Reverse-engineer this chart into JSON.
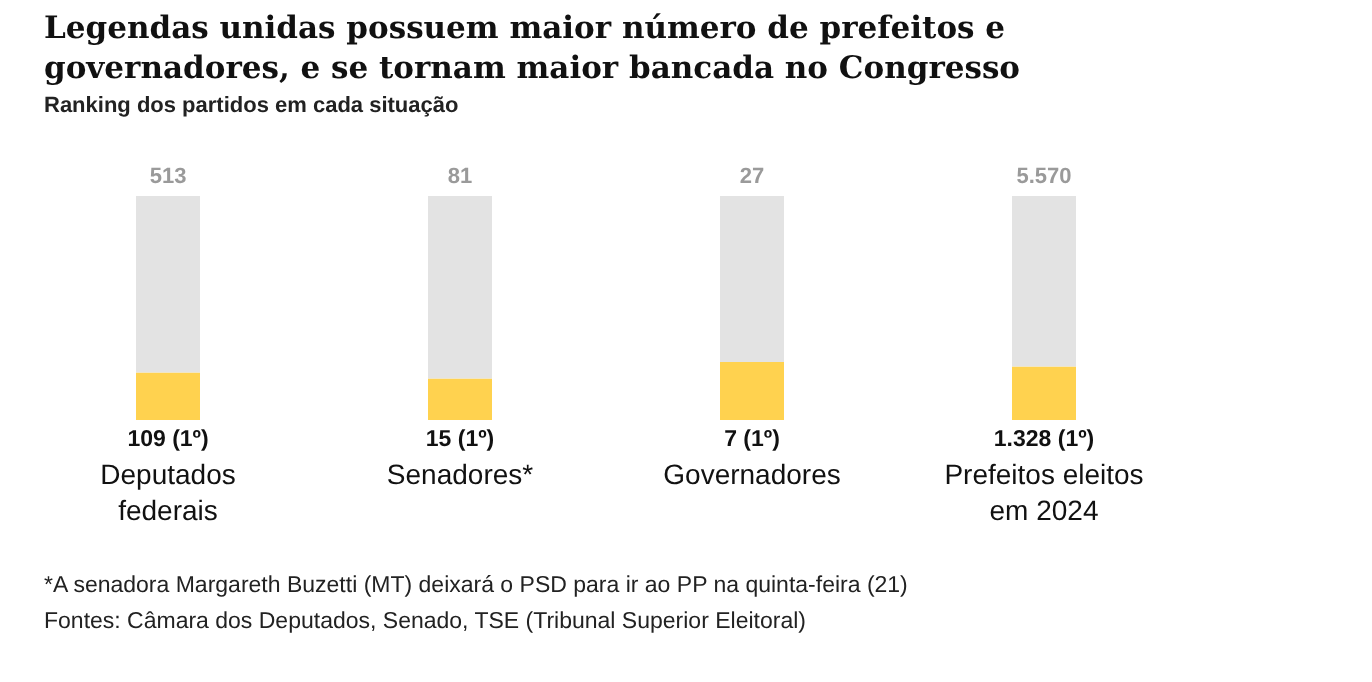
{
  "chart_data": [
    {
      "type": "bar",
      "title": "Legendas unidas possuem maior número de prefeitos e governadores, e se tornam maior bancada no Congresso",
      "subtitle": "Ranking dos partidos em cada situação",
      "annotations": [
        "*A senadora Margareth Buzetti (MT) deixará o PSD para ir ao PP na quinta-feira (21)",
        "Fontes: Câmara dos Deputados, Senado, TSE (Tribunal Superior Eleitoral)"
      ],
      "stacked": true,
      "legend": false,
      "tick_labels": "x",
      "categories": [
        "Deputados federais"
      ],
      "totals": [
        "513"
      ],
      "series": [
        {
          "color": "#ffd24f",
          "values": [
            109
          ],
          "value_labels": [
            "109 (1º)"
          ]
        },
        {
          "color": "#e3e3e3",
          "values": [
            404
          ]
        }
      ]
    },
    {
      "type": "bar",
      "stacked": true,
      "legend": false,
      "tick_labels": "x",
      "categories": [
        "Senadores*"
      ],
      "totals": [
        "81"
      ],
      "series": [
        {
          "color": "#ffd24f",
          "values": [
            15
          ],
          "value_labels": [
            "15 (1º)"
          ]
        },
        {
          "color": "#e3e3e3",
          "values": [
            66
          ]
        }
      ]
    },
    {
      "type": "bar",
      "stacked": true,
      "legend": false,
      "tick_labels": "x",
      "categories": [
        "Governadores"
      ],
      "totals": [
        "27"
      ],
      "series": [
        {
          "color": "#ffd24f",
          "values": [
            7
          ],
          "value_labels": [
            "7 (1º)"
          ]
        },
        {
          "color": "#e3e3e3",
          "values": [
            20
          ]
        }
      ]
    },
    {
      "type": "bar",
      "stacked": true,
      "legend": false,
      "tick_labels": "x",
      "categories": [
        "Prefeitos eleitos em 2024"
      ],
      "totals": [
        "5.570"
      ],
      "series": [
        {
          "color": "#ffd24f",
          "values": [
            1328
          ],
          "value_labels": [
            "1.328 (1º)"
          ]
        },
        {
          "color": "#e3e3e3",
          "values": [
            4242
          ]
        }
      ]
    }
  ]
}
